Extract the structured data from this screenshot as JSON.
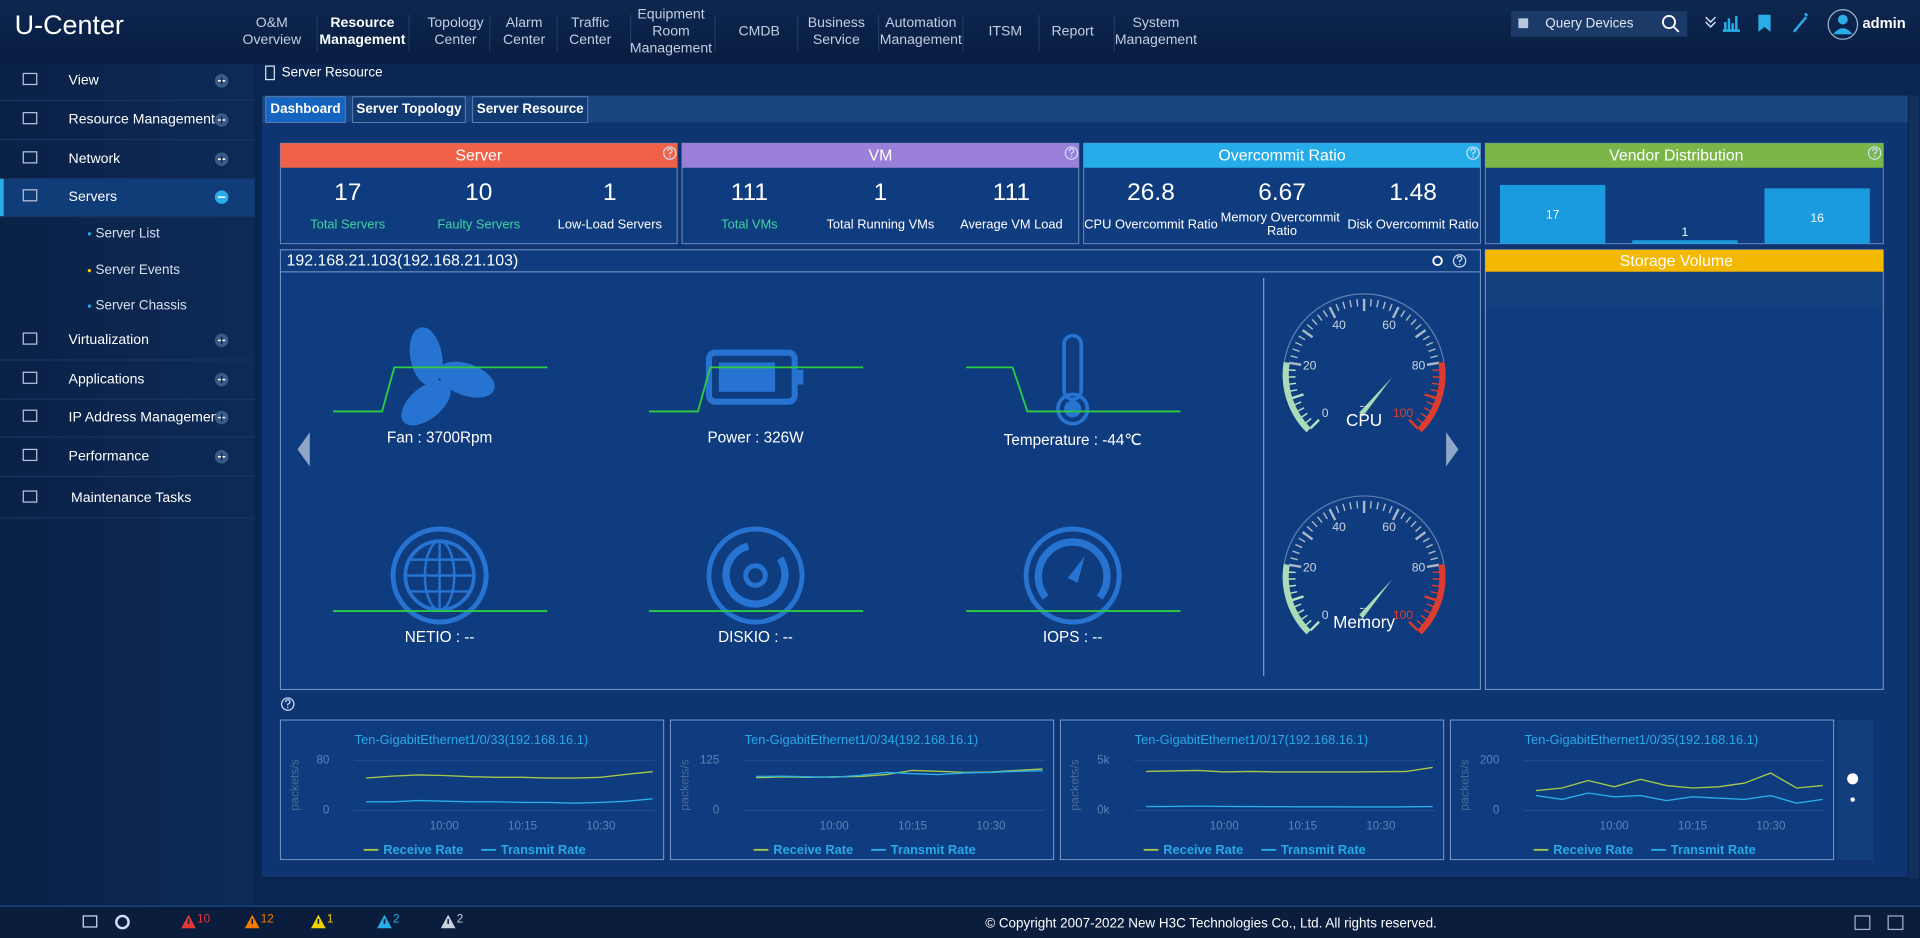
{
  "header": {
    "logo": "U-Center",
    "nav": [
      {
        "lines": [
          "O&M",
          "Overview"
        ]
      },
      {
        "lines": [
          "Resource",
          "Management"
        ]
      },
      {
        "lines": [
          "Topology",
          "Center"
        ]
      },
      {
        "lines": [
          "Alarm",
          "Center"
        ]
      },
      {
        "lines": [
          "Traffic",
          "Center"
        ]
      },
      {
        "lines": [
          "Equipment",
          "Room",
          "Management"
        ]
      },
      {
        "lines": [
          "CMDB"
        ]
      },
      {
        "lines": [
          "Business",
          "Service"
        ]
      },
      {
        "lines": [
          "Automation",
          "Management"
        ]
      },
      {
        "lines": [
          "ITSM"
        ]
      },
      {
        "lines": [
          "Report"
        ]
      },
      {
        "lines": [
          "System",
          "Management"
        ]
      }
    ],
    "active_nav": 1,
    "search_placeholder": "Query Devices",
    "user": "admin"
  },
  "sidebar": {
    "items": [
      {
        "label": "View"
      },
      {
        "label": "Resource Management"
      },
      {
        "label": "Network"
      },
      {
        "label": "Servers",
        "expanded": true,
        "children": [
          "Server List",
          "Server Events",
          "Server Chassis"
        ]
      },
      {
        "label": "Virtualization"
      },
      {
        "label": "Applications"
      },
      {
        "label": "IP Address Management"
      },
      {
        "label": "Performance"
      },
      {
        "label": "Maintenance Tasks"
      }
    ]
  },
  "breadcrumb": "Server Resource",
  "tabs": [
    "Dashboard",
    "Server Topology",
    "Server Resource"
  ],
  "active_tab": 0,
  "summary_cards": [
    {
      "title": "Server",
      "color": "#ef6248",
      "stats": [
        {
          "value": 17,
          "label": "Total Servers",
          "label_color": "#3fd3a2"
        },
        {
          "value": 10,
          "label": "Faulty Servers",
          "label_color": "#3fd3a2"
        },
        {
          "value": 1,
          "label": "Low-Load Servers",
          "label_color": "#ffffff"
        }
      ]
    },
    {
      "title": "VM",
      "color": "#9a80d8",
      "stats": [
        {
          "value": 111,
          "label": "Total VMs",
          "label_color": "#3fd3a2"
        },
        {
          "value": 1,
          "label": "Total Running VMs",
          "label_color": "#ffffff"
        },
        {
          "value": 111,
          "label": "Average VM Load",
          "label_color": "#ffffff"
        }
      ]
    },
    {
      "title": "Overcommit Ratio",
      "color": "#26ade9",
      "stats": [
        {
          "value": 26.8,
          "label": "CPU Overcommit Ratio",
          "label_color": "#ffffff"
        },
        {
          "value": 6.67,
          "label": "Memory Overcommit Ratio",
          "label_color": "#ffffff"
        },
        {
          "value": 1.48,
          "label": "Disk Overcommit Ratio",
          "label_color": "#ffffff"
        }
      ]
    }
  ],
  "vendor_distribution": {
    "type": "bar",
    "title": "Vendor Distribution",
    "header_color": "#7ab648",
    "color": "#1a9be0",
    "categories": [
      null,
      null,
      null
    ],
    "values": [
      17,
      1,
      16
    ]
  },
  "storage_volume": {
    "title": "Storage Volume",
    "header_color": "#f5b800"
  },
  "server_panel": {
    "title": "192.168.21.103(192.168.21.103)",
    "metrics": [
      "Fan : 3700Rpm",
      "Power : 326W",
      "Temperature : -44℃",
      "NETIO : --",
      "DISKIO : --",
      "IOPS : --"
    ],
    "gauges": [
      {
        "name": "CPU",
        "value_label": "--",
        "lim": [
          0,
          100
        ],
        "ticks": [
          0,
          20,
          40,
          60,
          80,
          100
        ]
      },
      {
        "name": "Memory",
        "value_label": "--",
        "lim": [
          0,
          100
        ],
        "ticks": [
          0,
          20,
          40,
          60,
          80,
          100
        ]
      }
    ]
  },
  "interface_charts": [
    {
      "type": "line",
      "title": "Ten-GigabitEthernet1/0/33(192.168.16.1)",
      "y_label": "packets/s",
      "ylim": [
        0,
        80
      ],
      "yticks": [
        0,
        80
      ],
      "xticks": [
        "10:00",
        "10:15",
        "10:30"
      ],
      "series": [
        {
          "name": "Receive Rate",
          "color": "#a9c84a",
          "values": [
            52,
            55,
            57,
            56,
            54,
            53,
            53,
            52,
            52,
            53,
            58,
            62
          ]
        },
        {
          "name": "Transmit Rate",
          "color": "#2aaeea",
          "values": [
            14,
            14,
            16,
            15,
            14,
            14,
            13,
            13,
            12,
            13,
            15,
            19
          ]
        }
      ]
    },
    {
      "type": "line",
      "title": "Ten-GigabitEthernet1/0/34(192.168.16.1)",
      "y_label": "packets/s",
      "ylim": [
        0,
        125
      ],
      "yticks": [
        0,
        125
      ],
      "xticks": [
        "10:00",
        "10:15",
        "10:30"
      ],
      "series": [
        {
          "name": "Receive Rate",
          "color": "#a9c84a",
          "values": [
            82,
            84,
            83,
            84,
            85,
            90,
            100,
            98,
            95,
            96,
            100,
            104
          ]
        },
        {
          "name": "Transmit Rate",
          "color": "#2aaeea",
          "values": [
            85,
            86,
            84,
            83,
            88,
            95,
            92,
            90,
            94,
            95,
            98,
            99
          ]
        }
      ]
    },
    {
      "type": "line",
      "title": "Ten-GigabitEthernet1/0/17(192.168.16.1)",
      "y_label": "packets/s",
      "ylim": [
        0,
        5000
      ],
      "yticks": [
        {
          "value": 0,
          "label": "0k"
        },
        {
          "value": 5000,
          "label": "5k"
        }
      ],
      "xticks": [
        "10:00",
        "10:15",
        "10:30"
      ],
      "series": [
        {
          "name": "Receive Rate",
          "color": "#a9c84a",
          "values": [
            3900,
            3950,
            4000,
            3850,
            3900,
            3850,
            3850,
            3850,
            3850,
            3880,
            3900,
            4300
          ]
        },
        {
          "name": "Transmit Rate",
          "color": "#2aaeea",
          "values": [
            400,
            420,
            450,
            420,
            400,
            390,
            380,
            380,
            370,
            370,
            380,
            400
          ]
        }
      ]
    },
    {
      "type": "line",
      "title": "Ten-GigabitEthernet1/0/35(192.168.16.1)",
      "y_label": "packets/s",
      "ylim": [
        0,
        200
      ],
      "yticks": [
        0,
        200
      ],
      "xticks": [
        "10:00",
        "10:15",
        "10:30"
      ],
      "series": [
        {
          "name": "Receive Rate",
          "color": "#a9c84a",
          "values": [
            80,
            90,
            120,
            95,
            125,
            100,
            90,
            95,
            110,
            150,
            90,
            100
          ]
        },
        {
          "name": "Transmit Rate",
          "color": "#2aaeea",
          "values": [
            60,
            45,
            70,
            55,
            60,
            40,
            55,
            50,
            45,
            60,
            30,
            45
          ]
        }
      ]
    }
  ],
  "footer": {
    "alarms": [
      {
        "count": 10,
        "color": "#e53935"
      },
      {
        "count": 12,
        "color": "#f57c00"
      },
      {
        "count": 1,
        "color": "#f5d000"
      },
      {
        "count": 2,
        "color": "#2aaeea"
      },
      {
        "count": 2,
        "color": "#c9d3e0"
      }
    ],
    "copyright": "© Copyright 2007-2022 New H3C Technologies Co., Ltd. All rights reserved."
  }
}
